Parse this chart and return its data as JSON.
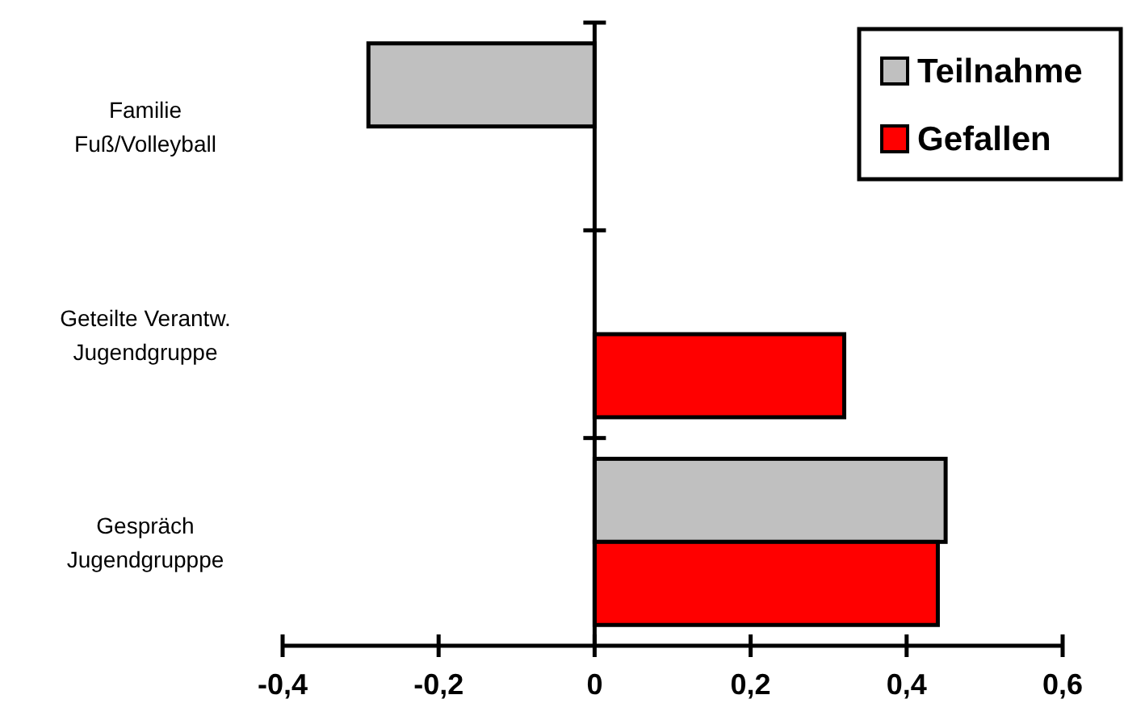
{
  "chart_data": {
    "type": "bar",
    "orientation": "horizontal",
    "categories": [
      "Familie\nFuß/Volleyball",
      "Geteilte Verantw.\nJugendgruppe",
      "Gespräch\nJugendgrupppe"
    ],
    "series": [
      {
        "name": "Teilnahme",
        "color": "#c0c0c0",
        "values": [
          -0.29,
          null,
          0.45
        ]
      },
      {
        "name": "Gefallen",
        "color": "#ff0000",
        "values": [
          null,
          0.32,
          0.44
        ]
      }
    ],
    "xlim": [
      -0.4,
      0.6
    ],
    "xticks": [
      {
        "value": -0.4,
        "label": "-0,4"
      },
      {
        "value": -0.2,
        "label": "-0,2"
      },
      0,
      {
        "value": 0.2,
        "label": "0,2"
      },
      {
        "value": 0.4,
        "label": "0,4"
      },
      {
        "value": 0.6,
        "label": "0,6"
      }
    ],
    "legend": "top right"
  }
}
